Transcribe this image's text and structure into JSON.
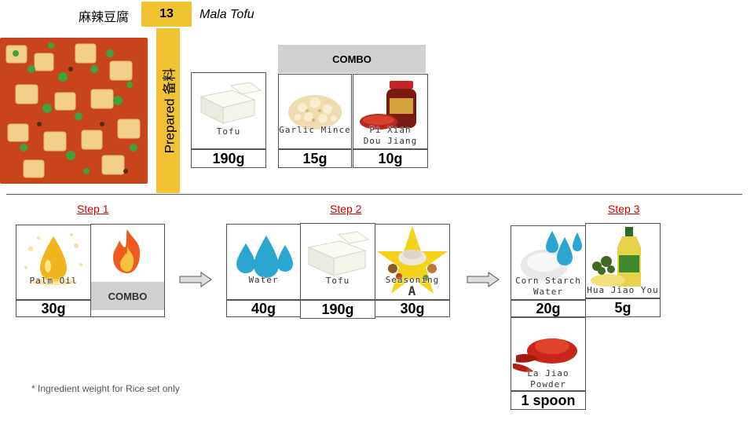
{
  "header": {
    "chinese_name": "麻辣豆腐",
    "number": "13",
    "english_name": "Mala Tofu"
  },
  "prepared_label": "Prepared 备料",
  "prepared": {
    "tofu": {
      "label": "Tofu",
      "weight": "190g"
    },
    "combo_header": "COMBO",
    "garlic": {
      "label": "Garlic Mince",
      "weight": "15g"
    },
    "pixian": {
      "label_line1": "Pi Xian",
      "label_line2": "Dou Jiang",
      "weight": "10g"
    }
  },
  "steps": {
    "step1": {
      "title": "Step 1",
      "palm_oil": {
        "label": "Palm Oil",
        "weight": "30g"
      },
      "fire_combo": "COMBO"
    },
    "step2": {
      "title": "Step 2",
      "water": {
        "label": "Water",
        "weight": "40g"
      },
      "tofu": {
        "label": "Tofu",
        "weight": "190g"
      },
      "seasoning": {
        "label": "Seasoning",
        "label_letter": "A",
        "weight": "30g"
      }
    },
    "step3": {
      "title": "Step 3",
      "corn_starch": {
        "label_line1": "Corn Starch",
        "label_line2": "Water",
        "weight": "20g"
      },
      "hua_jiao": {
        "label": "Hua Jiao You",
        "weight": "5g"
      },
      "la_jiao": {
        "label_line1": "La Jiao",
        "label_line2": "Powder",
        "weight": "1 spoon"
      }
    }
  },
  "footnote": "* Ingredient weight for Rice set only",
  "colors": {
    "accent_yellow": "#f1c232",
    "step_red": "#cc0000",
    "combo_grey": "#d0d0d0"
  }
}
